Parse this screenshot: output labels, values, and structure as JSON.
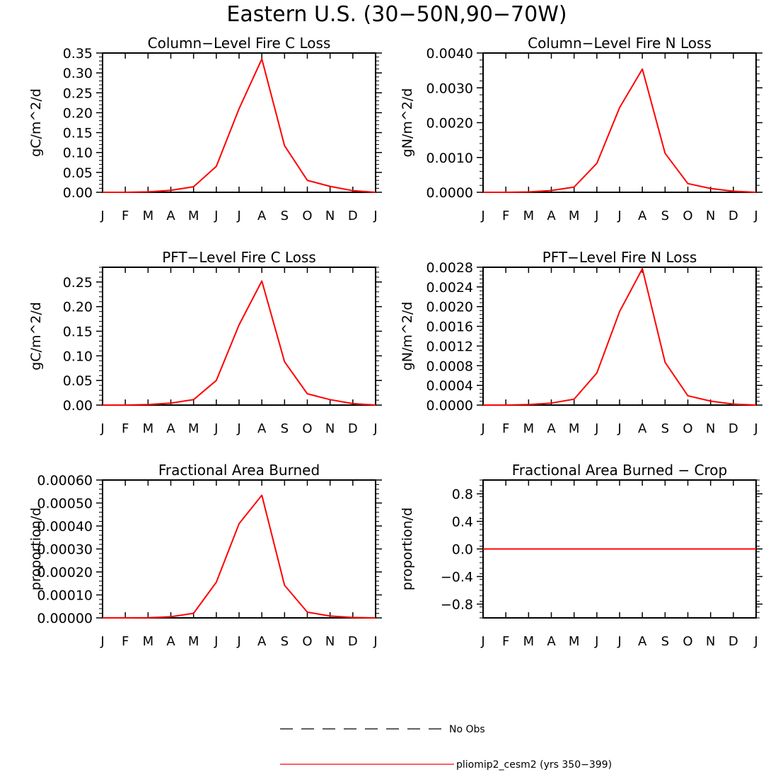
{
  "figure_title": "Eastern U.S. (30−50N,90−70W)",
  "legend": {
    "obs_label": "No Obs",
    "model_label": "pliomip2_cesm2 (yrs 350−399)",
    "model_color": "#ff0000",
    "obs_color": "#000000"
  },
  "chart_data": [
    {
      "type": "line",
      "title": "Column−Level Fire C Loss",
      "ylabel": "gC/m^2/d",
      "xlabel": "",
      "categories": [
        "J",
        "F",
        "M",
        "A",
        "M",
        "J",
        "J",
        "A",
        "S",
        "O",
        "N",
        "D",
        "J"
      ],
      "ylim": [
        0,
        0.35
      ],
      "yticks": [
        0,
        0.05,
        0.1,
        0.15,
        0.2,
        0.25,
        0.3,
        0.35
      ],
      "ytick_labels": [
        "0.00",
        "0.05",
        "0.10",
        "0.15",
        "0.20",
        "0.25",
        "0.30",
        "0.35"
      ],
      "series": [
        {
          "name": "pliomip2_cesm2 (yrs 350−399)",
          "color": "#ff0000",
          "values": [
            0.0,
            0.0,
            0.001,
            0.005,
            0.014,
            0.065,
            0.21,
            0.335,
            0.117,
            0.03,
            0.015,
            0.004,
            0.0
          ]
        }
      ]
    },
    {
      "type": "line",
      "title": "Column−Level Fire N Loss",
      "ylabel": "gN/m^2/d",
      "xlabel": "",
      "categories": [
        "J",
        "F",
        "M",
        "A",
        "M",
        "J",
        "J",
        "A",
        "S",
        "O",
        "N",
        "D",
        "J"
      ],
      "ylim": [
        0,
        0.004
      ],
      "yticks": [
        0,
        0.001,
        0.002,
        0.003,
        0.004
      ],
      "ytick_labels": [
        "0.0000",
        "0.0010",
        "0.0020",
        "0.0030",
        "0.0040"
      ],
      "series": [
        {
          "name": "pliomip2_cesm2 (yrs 350−399)",
          "color": "#ff0000",
          "values": [
            0.0,
            0.0,
            1e-05,
            5e-05,
            0.00015,
            0.00083,
            0.00243,
            0.00354,
            0.00112,
            0.00025,
            0.00011,
            3e-05,
            0.0
          ]
        }
      ]
    },
    {
      "type": "line",
      "title": "PFT−Level Fire C Loss",
      "ylabel": "gC/m^2/d",
      "xlabel": "",
      "categories": [
        "J",
        "F",
        "M",
        "A",
        "M",
        "J",
        "J",
        "A",
        "S",
        "O",
        "N",
        "D",
        "J"
      ],
      "ylim": [
        0,
        0.28
      ],
      "yticks": [
        0,
        0.05,
        0.1,
        0.15,
        0.2,
        0.25
      ],
      "ytick_labels": [
        "0.00",
        "0.05",
        "0.10",
        "0.15",
        "0.20",
        "0.25"
      ],
      "series": [
        {
          "name": "pliomip2_cesm2 (yrs 350−399)",
          "color": "#ff0000",
          "values": [
            0.0,
            0.0,
            0.001,
            0.004,
            0.011,
            0.05,
            0.163,
            0.252,
            0.088,
            0.023,
            0.011,
            0.003,
            0.0
          ]
        }
      ]
    },
    {
      "type": "line",
      "title": "PFT−Level Fire N Loss",
      "ylabel": "gN/m^2/d",
      "xlabel": "",
      "categories": [
        "J",
        "F",
        "M",
        "A",
        "M",
        "J",
        "J",
        "A",
        "S",
        "O",
        "N",
        "D",
        "J"
      ],
      "ylim": [
        0,
        0.0028
      ],
      "yticks": [
        0,
        0.0004,
        0.0008,
        0.0012,
        0.0016,
        0.002,
        0.0024,
        0.0028
      ],
      "ytick_labels": [
        "0.0000",
        "0.0004",
        "0.0008",
        "0.0012",
        "0.0016",
        "0.0020",
        "0.0024",
        "0.0028"
      ],
      "series": [
        {
          "name": "pliomip2_cesm2 (yrs 350−399)",
          "color": "#ff0000",
          "values": [
            0.0,
            0.0,
            1e-05,
            4e-05,
            0.00012,
            0.00065,
            0.0019,
            0.00277,
            0.00087,
            0.00019,
            8e-05,
            2e-05,
            0.0
          ]
        }
      ]
    },
    {
      "type": "line",
      "title": "Fractional Area Burned",
      "ylabel": "proportion/d",
      "xlabel": "",
      "categories": [
        "J",
        "F",
        "M",
        "A",
        "M",
        "J",
        "J",
        "A",
        "S",
        "O",
        "N",
        "D",
        "J"
      ],
      "ylim": [
        0,
        0.0006
      ],
      "yticks": [
        0,
        0.0001,
        0.0002,
        0.0003,
        0.0004,
        0.0005,
        0.0006
      ],
      "ytick_labels": [
        "0.00000",
        "0.00010",
        "0.00020",
        "0.00030",
        "0.00040",
        "0.00050",
        "0.00060"
      ],
      "series": [
        {
          "name": "pliomip2_cesm2 (yrs 350−399)",
          "color": "#ff0000",
          "values": [
            0.0,
            0.0,
            1e-06,
            5e-06,
            2e-05,
            0.000155,
            0.00041,
            0.000534,
            0.000142,
            2.5e-05,
            8e-06,
            2e-06,
            0.0
          ]
        }
      ]
    },
    {
      "type": "line",
      "title": "Fractional Area Burned − Crop",
      "ylabel": "proportion/d",
      "xlabel": "",
      "categories": [
        "J",
        "F",
        "M",
        "A",
        "M",
        "J",
        "J",
        "A",
        "S",
        "O",
        "N",
        "D",
        "J"
      ],
      "ylim": [
        -1,
        1
      ],
      "yticks": [
        -0.8,
        -0.4,
        0.0,
        0.4,
        0.8
      ],
      "ytick_labels": [
        "−0.8",
        "−0.4",
        "0.0",
        "0.4",
        "0.8"
      ],
      "series": [
        {
          "name": "pliomip2_cesm2 (yrs 350−399)",
          "color": "#ff0000",
          "values": [
            0,
            0,
            0,
            0,
            0,
            0,
            0,
            0,
            0,
            0,
            0,
            0,
            0
          ]
        }
      ]
    }
  ]
}
